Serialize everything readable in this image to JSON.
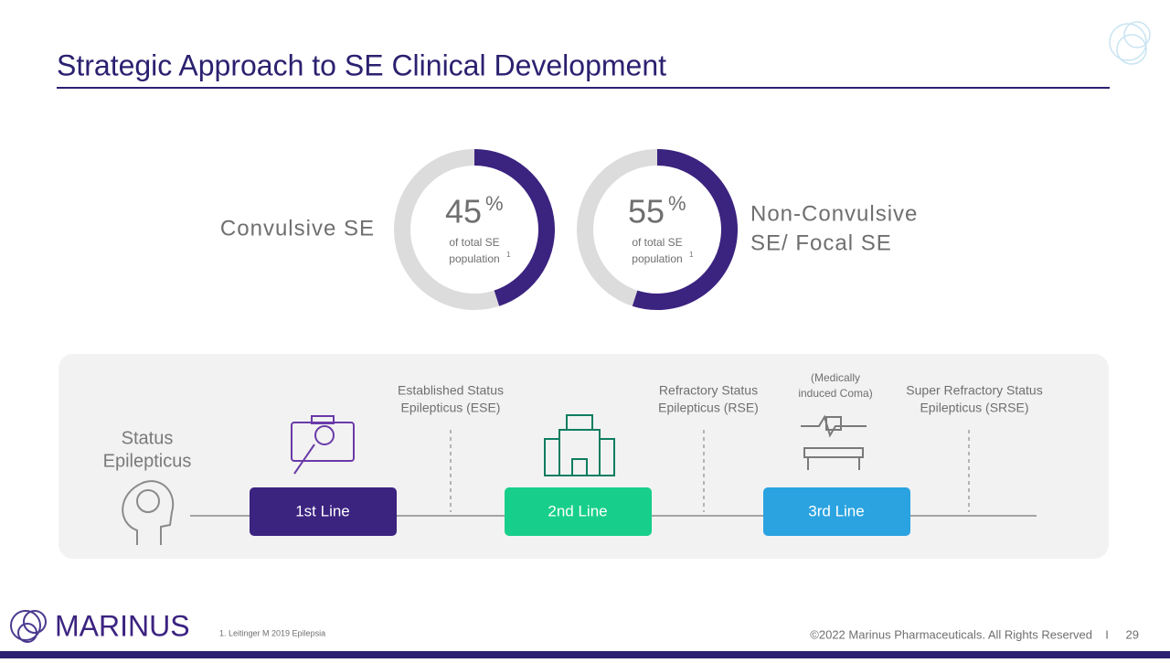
{
  "header": {
    "title": "Strategic Approach to SE Clinical Development"
  },
  "donuts": [
    {
      "label_lines": [
        "Convulsive SE"
      ],
      "value": 45,
      "unit": "%",
      "caption_lines": [
        "of total SE",
        "population"
      ],
      "footnote_ref": "1",
      "color": "#3b2380",
      "track_color": "#dcdcdc"
    },
    {
      "label_lines": [
        "Non-Convulsive",
        "SE/ Focal SE"
      ],
      "value": 55,
      "unit": "%",
      "caption_lines": [
        "of total SE",
        "population"
      ],
      "footnote_ref": "1",
      "color": "#3b2380",
      "track_color": "#dcdcdc"
    }
  ],
  "pathway": {
    "start_lines": [
      "Status",
      "Epilepticus"
    ],
    "stages": [
      {
        "label": "1st Line",
        "color": "#3b2380"
      },
      {
        "label": "2nd Line",
        "color": "#17cf8a"
      },
      {
        "label": "3rd Line",
        "color": "#2aa3e0"
      }
    ],
    "milestones": [
      {
        "lines": [
          "Established Status",
          "Epilepticus (ESE)"
        ]
      },
      {
        "lines": [
          "Refractory Status",
          "Epilepticus (RSE)"
        ]
      },
      {
        "lines": [
          "Super Refractory Status",
          "Epilepticus (SRSE)"
        ]
      }
    ],
    "note_lines": [
      "(Medically",
      "induced Coma)"
    ]
  },
  "footer": {
    "logo": "MARINUS",
    "footnote": "1.  Leitinger M 2019 Epilepsia",
    "copyright": "©2022 Marinus Pharmaceuticals. All Rights Reserved",
    "separator": "I",
    "page": 29
  }
}
